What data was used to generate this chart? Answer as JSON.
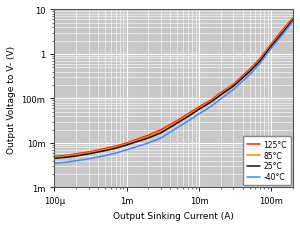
{
  "title": "",
  "xlabel": "Output Sinking Current (A)",
  "ylabel": "Output Voltage to V- (V)",
  "xlim": [
    0.0001,
    0.2
  ],
  "ylim": [
    0.001,
    10
  ],
  "legend": [
    "125°C",
    "85°C",
    "25°C",
    "-40°C"
  ],
  "colors": [
    "#ff2200",
    "#ff8800",
    "#111111",
    "#4488ff"
  ],
  "plot_bg": "#c8c8c8",
  "fig_bg": "#ffffff",
  "grid_major_color": "#ffffff",
  "grid_minor_color": "#ffffff",
  "x_ticks": [
    0.0001,
    0.001,
    0.01,
    0.1
  ],
  "x_labels": [
    "100μ",
    "1m",
    "10m",
    "100m"
  ],
  "y_ticks": [
    0.001,
    0.01,
    0.1,
    1,
    10
  ],
  "y_labels": [
    "1m",
    "10m",
    "100m",
    "1",
    "10"
  ],
  "curves": {
    "125C": {
      "x": [
        0.0001,
        0.00015,
        0.0002,
        0.0003,
        0.0005,
        0.0007,
        0.001,
        0.002,
        0.003,
        0.005,
        0.007,
        0.01,
        0.015,
        0.02,
        0.03,
        0.05,
        0.07,
        0.1,
        0.15,
        0.2
      ],
      "y": [
        0.005,
        0.0053,
        0.0057,
        0.0063,
        0.0075,
        0.0085,
        0.01,
        0.015,
        0.02,
        0.032,
        0.045,
        0.065,
        0.095,
        0.135,
        0.21,
        0.45,
        0.8,
        1.7,
        3.8,
        6.5
      ]
    },
    "85C": {
      "x": [
        0.0001,
        0.00015,
        0.0002,
        0.0003,
        0.0005,
        0.0007,
        0.001,
        0.002,
        0.003,
        0.005,
        0.007,
        0.01,
        0.015,
        0.02,
        0.03,
        0.05,
        0.07,
        0.1,
        0.15,
        0.2
      ],
      "y": [
        0.0048,
        0.0051,
        0.0054,
        0.006,
        0.0071,
        0.0081,
        0.0095,
        0.014,
        0.0185,
        0.03,
        0.042,
        0.061,
        0.09,
        0.127,
        0.2,
        0.42,
        0.75,
        1.6,
        3.5,
        6.2
      ]
    },
    "25C": {
      "x": [
        0.0001,
        0.00015,
        0.0002,
        0.0003,
        0.0005,
        0.0007,
        0.001,
        0.002,
        0.003,
        0.005,
        0.007,
        0.01,
        0.015,
        0.02,
        0.03,
        0.05,
        0.07,
        0.1,
        0.15,
        0.2
      ],
      "y": [
        0.0045,
        0.0048,
        0.0051,
        0.0057,
        0.0067,
        0.0076,
        0.009,
        0.013,
        0.017,
        0.028,
        0.039,
        0.057,
        0.085,
        0.12,
        0.19,
        0.4,
        0.7,
        1.5,
        3.3,
        5.9
      ]
    },
    "-40C": {
      "x": [
        0.0001,
        0.00015,
        0.0002,
        0.0003,
        0.0005,
        0.0007,
        0.001,
        0.002,
        0.003,
        0.005,
        0.007,
        0.01,
        0.015,
        0.02,
        0.03,
        0.05,
        0.07,
        0.1,
        0.15,
        0.2
      ],
      "y": [
        0.0035,
        0.0037,
        0.004,
        0.0044,
        0.0052,
        0.0059,
        0.007,
        0.01,
        0.013,
        0.022,
        0.031,
        0.045,
        0.068,
        0.098,
        0.16,
        0.34,
        0.62,
        1.35,
        3.0,
        5.5
      ]
    }
  }
}
